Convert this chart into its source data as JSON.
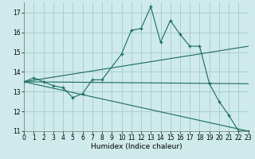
{
  "xlabel": "Humidex (Indice chaleur)",
  "bg_color": "#ceeaea",
  "grid_color": "#aacfcf",
  "line_color": "#1a6b5e",
  "series": [
    {
      "x": [
        0,
        1,
        2,
        3,
        4,
        5,
        6,
        7,
        8,
        10,
        11,
        12,
        13,
        14,
        15,
        16,
        17,
        18,
        19,
        20,
        21,
        22,
        23
      ],
      "y": [
        13.5,
        13.7,
        13.5,
        13.3,
        13.2,
        12.7,
        12.9,
        13.6,
        13.6,
        14.9,
        16.1,
        16.2,
        17.3,
        15.5,
        16.6,
        15.9,
        15.3,
        15.3,
        13.4,
        12.5,
        11.8,
        11.0,
        11.0
      ],
      "marker": true
    },
    {
      "x": [
        0,
        23
      ],
      "y": [
        13.5,
        13.4
      ],
      "marker": false
    },
    {
      "x": [
        0,
        23
      ],
      "y": [
        13.5,
        15.3
      ],
      "marker": false
    },
    {
      "x": [
        0,
        23
      ],
      "y": [
        13.5,
        11.0
      ],
      "marker": false
    }
  ],
  "xlim": [
    0,
    23
  ],
  "ylim": [
    11,
    17.5
  ],
  "yticks": [
    11,
    12,
    13,
    14,
    15,
    16,
    17
  ],
  "xticks": [
    0,
    1,
    2,
    3,
    4,
    5,
    6,
    7,
    8,
    9,
    10,
    11,
    12,
    13,
    14,
    15,
    16,
    17,
    18,
    19,
    20,
    21,
    22,
    23
  ],
  "tick_fontsize": 5.5,
  "xlabel_fontsize": 6.5
}
